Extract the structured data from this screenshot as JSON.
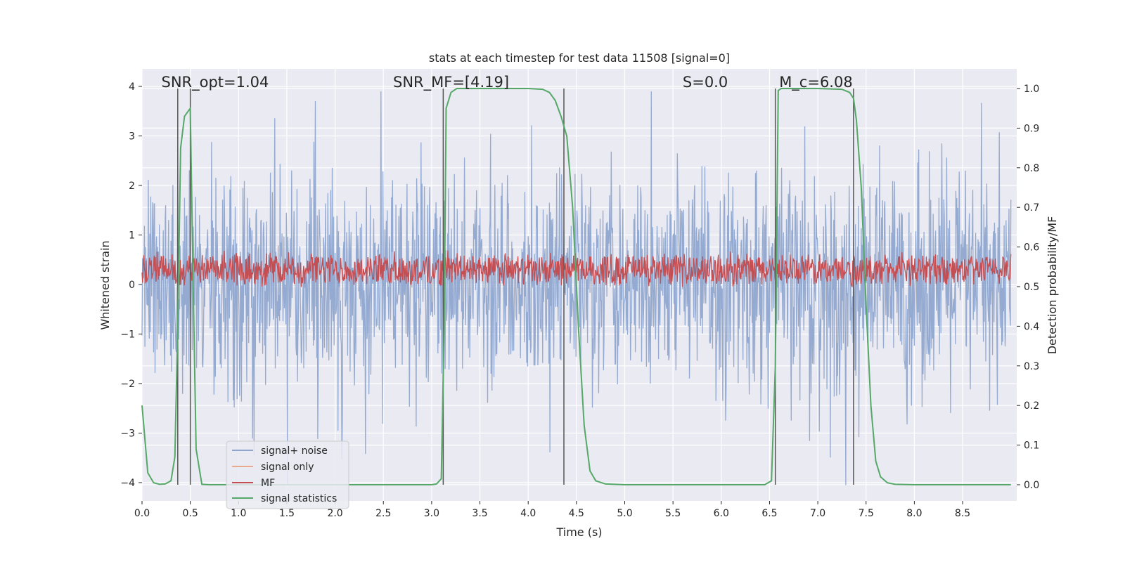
{
  "chart_data": {
    "type": "line",
    "title": "stats at each timestep for test data 11508 [signal=0]",
    "xlabel": "Time (s)",
    "ylabel": "Whitened strain",
    "y2label": "Detection probability/MF",
    "xlim": [
      0.0,
      9.0
    ],
    "ylim": [
      -4.4,
      4.3
    ],
    "y2lim": [
      -0.05,
      1.035
    ],
    "xticks": [
      "0.0",
      "0.5",
      "1.0",
      "1.5",
      "2.0",
      "2.5",
      "3.0",
      "3.5",
      "4.0",
      "4.5",
      "5.0",
      "5.5",
      "6.0",
      "6.5",
      "7.0",
      "7.5",
      "8.0",
      "8.5"
    ],
    "yticks": [
      "4",
      "3",
      "2",
      "1",
      "0",
      "−1",
      "−2",
      "−3",
      "−4"
    ],
    "y2ticks": [
      "1.0",
      "0.9",
      "0.8",
      "0.7",
      "0.6",
      "0.5",
      "0.4",
      "0.3",
      "0.2",
      "0.1",
      "0.0"
    ],
    "grid": true,
    "legend_position": "lower-left",
    "annotations": [
      {
        "id": "snr-opt",
        "text": "SNR_opt=1.04",
        "x": 0.2
      },
      {
        "id": "snr-mf",
        "text": "SNR_MF=[4.19]",
        "x": 2.6
      },
      {
        "id": "s-value",
        "text": "S=0.0",
        "x": 5.6
      },
      {
        "id": "mc-value",
        "text": "M_c=6.08",
        "x": 6.6
      }
    ],
    "vertical_lines": [
      0.37,
      0.5,
      3.12,
      4.37,
      6.56,
      7.37
    ],
    "series": [
      {
        "name": "signal+ noise",
        "color": "#8fa6cf",
        "axis": "left",
        "kind": "noise",
        "amplitude": 3.9
      },
      {
        "name": "signal only",
        "color": "#e8a98e",
        "axis": "left",
        "kind": "flat",
        "values": []
      },
      {
        "name": "MF",
        "color": "#c44e52",
        "axis": "left",
        "kind": "noise",
        "center": 0.3
      },
      {
        "name": "signal statistics",
        "color": "#55a868",
        "axis": "right",
        "x": [
          0.0,
          0.06,
          0.12,
          0.18,
          0.24,
          0.3,
          0.34,
          0.37,
          0.4,
          0.44,
          0.5,
          0.53,
          0.56,
          0.62,
          0.7,
          1.0,
          2.0,
          3.0,
          3.05,
          3.1,
          3.13,
          3.15,
          3.2,
          3.26,
          3.35,
          3.5,
          4.0,
          4.15,
          4.22,
          4.28,
          4.34,
          4.4,
          4.46,
          4.52,
          4.58,
          4.64,
          4.7,
          4.8,
          5.0,
          6.0,
          6.45,
          6.52,
          6.56,
          6.59,
          6.62,
          6.7,
          7.0,
          7.25,
          7.33,
          7.37,
          7.4,
          7.45,
          7.5,
          7.55,
          7.6,
          7.65,
          7.72,
          7.8,
          8.0,
          9.0
        ],
        "y": [
          0.2,
          0.03,
          0.005,
          0.001,
          0.002,
          0.01,
          0.07,
          0.4,
          0.85,
          0.93,
          0.95,
          0.5,
          0.09,
          0.001,
          0.0,
          0.0,
          0.0,
          0.0,
          0.002,
          0.015,
          0.4,
          0.95,
          0.99,
          1.0,
          1.0,
          1.0,
          1.0,
          0.998,
          0.99,
          0.97,
          0.93,
          0.88,
          0.7,
          0.4,
          0.15,
          0.035,
          0.01,
          0.002,
          0.0,
          0.0,
          0.0,
          0.01,
          0.3,
          0.995,
          1.0,
          1.0,
          1.0,
          0.998,
          0.99,
          0.975,
          0.92,
          0.75,
          0.45,
          0.2,
          0.06,
          0.02,
          0.005,
          0.001,
          0.0,
          0.0
        ]
      }
    ]
  }
}
